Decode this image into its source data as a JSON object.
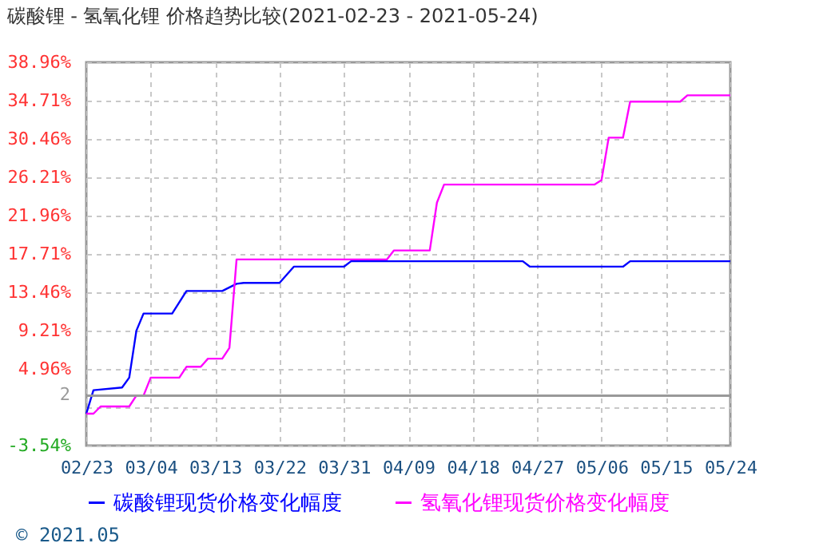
{
  "chart_data": {
    "type": "line",
    "title": "碳酸锂 - 氢氧化锂 价格趋势比较(2021-02-23 - 2021-05-24)",
    "series": [
      {
        "name": "碳酸锂现货价格变化幅度",
        "color": "#0000ff",
        "x": [
          "2021-02-23",
          "2021-02-24",
          "2021-02-28",
          "2021-03-01",
          "2021-03-02",
          "2021-03-03",
          "2021-03-07",
          "2021-03-09",
          "2021-03-14",
          "2021-03-16",
          "2021-03-17",
          "2021-03-22",
          "2021-03-24",
          "2021-03-31",
          "2021-04-01",
          "2021-04-25",
          "2021-04-26",
          "2021-05-09",
          "2021-05-10",
          "2021-05-24"
        ],
        "values": [
          0,
          2.6,
          2.9,
          4.0,
          9.2,
          11.1,
          11.1,
          13.6,
          13.6,
          14.4,
          14.5,
          14.5,
          16.3,
          16.3,
          16.9,
          16.9,
          16.3,
          16.3,
          16.9,
          16.9
        ]
      },
      {
        "name": "氢氧化锂现货价格变化幅度",
        "color": "#ff00ff",
        "x": [
          "2021-02-23",
          "2021-02-24",
          "2021-02-25",
          "2021-03-01",
          "2021-03-02",
          "2021-03-03",
          "2021-03-04",
          "2021-03-08",
          "2021-03-09",
          "2021-03-11",
          "2021-03-12",
          "2021-03-14",
          "2021-03-15",
          "2021-03-16",
          "2021-04-06",
          "2021-04-07",
          "2021-04-12",
          "2021-04-13",
          "2021-04-14",
          "2021-05-05",
          "2021-05-06",
          "2021-05-07",
          "2021-05-09",
          "2021-05-10",
          "2021-05-17",
          "2021-05-18",
          "2021-05-24"
        ],
        "values": [
          0,
          0,
          0.8,
          0.8,
          2.0,
          2.0,
          4.0,
          4.0,
          5.2,
          5.2,
          6.1,
          6.1,
          7.3,
          17.1,
          17.1,
          18.1,
          18.1,
          23.4,
          25.4,
          25.4,
          25.9,
          30.6,
          30.6,
          34.6,
          34.6,
          35.3,
          35.3
        ]
      }
    ],
    "xlim": [
      "2021-02-23",
      "2021-05-24"
    ],
    "xticks": [
      {
        "value": "2021-02-23",
        "label": "02/23"
      },
      {
        "value": "2021-03-04",
        "label": "03/04"
      },
      {
        "value": "2021-03-13",
        "label": "03/13"
      },
      {
        "value": "2021-03-22",
        "label": "03/22"
      },
      {
        "value": "2021-03-31",
        "label": "03/31"
      },
      {
        "value": "2021-04-09",
        "label": "04/09"
      },
      {
        "value": "2021-04-18",
        "label": "04/18"
      },
      {
        "value": "2021-04-27",
        "label": "04/27"
      },
      {
        "value": "2021-05-06",
        "label": "05/06"
      },
      {
        "value": "2021-05-15",
        "label": "05/15"
      },
      {
        "value": "2021-05-24",
        "label": "05/24"
      }
    ],
    "ylim": [
      -3.54,
      38.96
    ],
    "yticks": [
      {
        "value": -3.54,
        "label": "-3.54%"
      },
      {
        "value": 0.71,
        "label": null
      },
      {
        "value": 4.96,
        "label": "4.96%"
      },
      {
        "value": 9.21,
        "label": "9.21%"
      },
      {
        "value": 13.46,
        "label": "13.46%"
      },
      {
        "value": 17.71,
        "label": "17.71%"
      },
      {
        "value": 21.96,
        "label": "21.96%"
      },
      {
        "value": 26.21,
        "label": "26.21%"
      },
      {
        "value": 30.46,
        "label": "30.46%"
      },
      {
        "value": 34.71,
        "label": "34.71%"
      },
      {
        "value": 38.96,
        "label": "38.96%"
      }
    ],
    "ref_lines": [
      {
        "axis": "y",
        "value": 2,
        "label": "2",
        "color": "#999999"
      }
    ],
    "grid": true,
    "legend": "bottom",
    "annotations": [
      "© 2021.05"
    ]
  }
}
